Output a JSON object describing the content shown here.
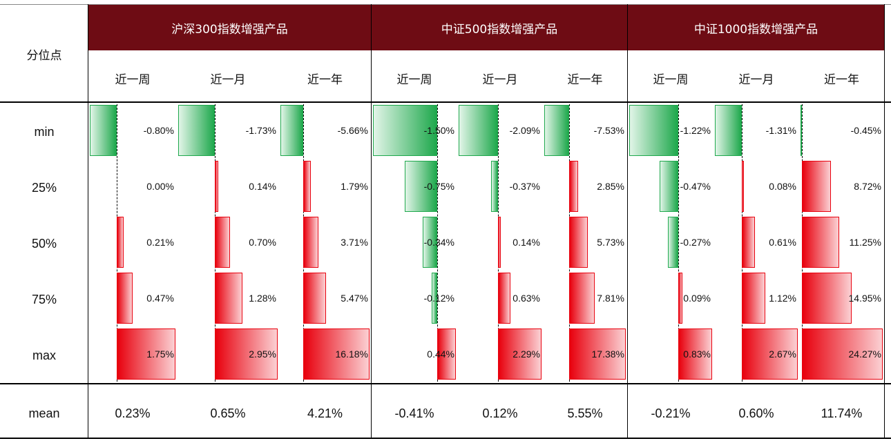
{
  "table": {
    "corner_label": "分位点",
    "groups": [
      {
        "title": "沪深300指数增强产品"
      },
      {
        "title": "中证500指数增强产品"
      },
      {
        "title": "中证1000指数增强产品"
      }
    ],
    "periods": [
      "近一周",
      "近一月",
      "近一年",
      "近一周",
      "近一月",
      "近一年",
      "近一周",
      "近一月",
      "近一年"
    ],
    "row_labels": [
      "min",
      "25%",
      "50%",
      "75%",
      "max"
    ],
    "mean_label": "mean",
    "colors": {
      "header_bg": "#6e0c14",
      "positive": "#e8000d",
      "negative": "#1ea84c"
    }
  },
  "chart_data": {
    "type": "table",
    "columns": [
      {
        "group": "沪深300指数增强产品",
        "period": "近一周",
        "values": [
          -0.8,
          0.0,
          0.21,
          0.47,
          1.75
        ],
        "labels": [
          "-0.80%",
          "0.00%",
          "0.21%",
          "0.47%",
          "1.75%"
        ],
        "mean": "0.23%"
      },
      {
        "group": "沪深300指数增强产品",
        "period": "近一月",
        "values": [
          -1.73,
          0.14,
          0.7,
          1.28,
          2.95
        ],
        "labels": [
          "-1.73%",
          "0.14%",
          "0.70%",
          "1.28%",
          "2.95%"
        ],
        "mean": "0.65%"
      },
      {
        "group": "沪深300指数增强产品",
        "period": "近一年",
        "values": [
          -5.66,
          1.79,
          3.71,
          5.47,
          16.18
        ],
        "labels": [
          "-5.66%",
          "1.79%",
          "3.71%",
          "5.47%",
          "16.18%"
        ],
        "mean": "4.21%"
      },
      {
        "group": "中证500指数增强产品",
        "period": "近一周",
        "values": [
          -1.5,
          -0.75,
          -0.34,
          -0.12,
          0.44
        ],
        "labels": [
          "-1.50%",
          "-0.75%",
          "-0.34%",
          "-0.12%",
          "0.44%"
        ],
        "mean": "-0.41%"
      },
      {
        "group": "中证500指数增强产品",
        "period": "近一月",
        "values": [
          -2.09,
          -0.37,
          0.14,
          0.63,
          2.29
        ],
        "labels": [
          "-2.09%",
          "-0.37%",
          "0.14%",
          "0.63%",
          "2.29%"
        ],
        "mean": "0.12%"
      },
      {
        "group": "中证500指数增强产品",
        "period": "近一年",
        "values": [
          -7.53,
          2.85,
          5.73,
          7.81,
          17.38
        ],
        "labels": [
          "-7.53%",
          "2.85%",
          "5.73%",
          "7.81%",
          "17.38%"
        ],
        "mean": "5.55%"
      },
      {
        "group": "中证1000指数增强产品",
        "period": "近一周",
        "values": [
          -1.22,
          -0.47,
          -0.27,
          0.09,
          0.83
        ],
        "labels": [
          "-1.22%",
          "-0.47%",
          "-0.27%",
          "0.09%",
          "0.83%"
        ],
        "mean": "-0.21%"
      },
      {
        "group": "中证1000指数增强产品",
        "period": "近一月",
        "values": [
          -1.31,
          0.08,
          0.61,
          1.12,
          2.67
        ],
        "labels": [
          "-1.31%",
          "0.08%",
          "0.61%",
          "1.12%",
          "2.67%"
        ],
        "mean": "0.60%"
      },
      {
        "group": "中证1000指数增强产品",
        "period": "近一年",
        "values": [
          -0.45,
          8.72,
          11.25,
          14.95,
          24.27
        ],
        "labels": [
          "-0.45%",
          "8.72%",
          "11.25%",
          "14.95%",
          "24.27%"
        ],
        "mean": "11.74%"
      }
    ]
  }
}
